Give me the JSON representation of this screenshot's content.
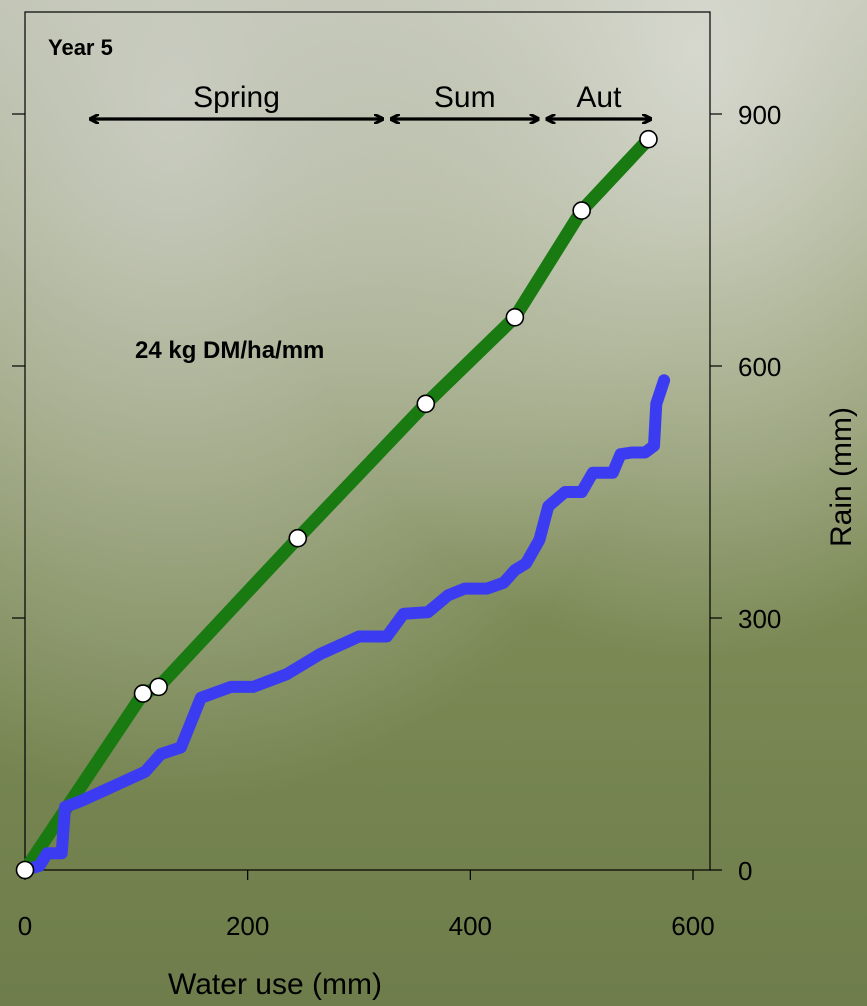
{
  "chart_data": {
    "type": "line",
    "annotation_year": "Year 5",
    "annotation_rate": "24 kg DM/ha/mm",
    "xlabel": "Water use (mm)",
    "ylabel_right": "Rain (mm)",
    "xlim": [
      0,
      610
    ],
    "ylim": [
      0,
      1000
    ],
    "x_ticks": [
      0,
      200,
      400,
      600
    ],
    "y_ticks": [
      0,
      300,
      600,
      900
    ],
    "seasons": [
      {
        "label": "Spring",
        "x_start": 55,
        "x_end": 325
      },
      {
        "label": "Sum",
        "x_end_prev": 325,
        "x_start": 325,
        "x_end": 465
      },
      {
        "label": "Aut",
        "x_start": 465,
        "x_end": 566
      }
    ],
    "series": [
      {
        "color": "#1a7a12",
        "values": [
          {
            "x": 0,
            "y": 0
          },
          {
            "x": 106,
            "y": 210
          },
          {
            "x": 120,
            "y": 218
          },
          {
            "x": 245,
            "y": 395
          },
          {
            "x": 360,
            "y": 555
          },
          {
            "x": 440,
            "y": 658
          },
          {
            "x": 500,
            "y": 785
          },
          {
            "x": 560,
            "y": 870
          }
        ],
        "markers": [
          {
            "x": 0,
            "y": 0
          },
          {
            "x": 106,
            "y": 210
          },
          {
            "x": 120,
            "y": 218
          },
          {
            "x": 245,
            "y": 395
          },
          {
            "x": 360,
            "y": 555
          },
          {
            "x": 440,
            "y": 658
          },
          {
            "x": 500,
            "y": 785
          },
          {
            "x": 560,
            "y": 870
          }
        ]
      },
      {
        "color": "#3b3cf2",
        "values": [
          {
            "x": 0,
            "y": 0
          },
          {
            "x": 13,
            "y": 5
          },
          {
            "x": 20,
            "y": 20
          },
          {
            "x": 33,
            "y": 20
          },
          {
            "x": 36,
            "y": 75
          },
          {
            "x": 50,
            "y": 82
          },
          {
            "x": 75,
            "y": 97
          },
          {
            "x": 108,
            "y": 117
          },
          {
            "x": 122,
            "y": 138
          },
          {
            "x": 140,
            "y": 146
          },
          {
            "x": 158,
            "y": 205
          },
          {
            "x": 185,
            "y": 218
          },
          {
            "x": 205,
            "y": 218
          },
          {
            "x": 235,
            "y": 233
          },
          {
            "x": 265,
            "y": 257
          },
          {
            "x": 300,
            "y": 278
          },
          {
            "x": 325,
            "y": 278
          },
          {
            "x": 340,
            "y": 305
          },
          {
            "x": 362,
            "y": 307
          },
          {
            "x": 380,
            "y": 327
          },
          {
            "x": 395,
            "y": 335
          },
          {
            "x": 415,
            "y": 335
          },
          {
            "x": 430,
            "y": 342
          },
          {
            "x": 440,
            "y": 357
          },
          {
            "x": 450,
            "y": 365
          },
          {
            "x": 462,
            "y": 393
          },
          {
            "x": 470,
            "y": 433
          },
          {
            "x": 485,
            "y": 450
          },
          {
            "x": 500,
            "y": 450
          },
          {
            "x": 510,
            "y": 473
          },
          {
            "x": 528,
            "y": 473
          },
          {
            "x": 535,
            "y": 495
          },
          {
            "x": 545,
            "y": 497
          },
          {
            "x": 557,
            "y": 497
          },
          {
            "x": 565,
            "y": 505
          },
          {
            "x": 567,
            "y": 555
          },
          {
            "x": 574,
            "y": 583
          }
        ]
      }
    ]
  }
}
